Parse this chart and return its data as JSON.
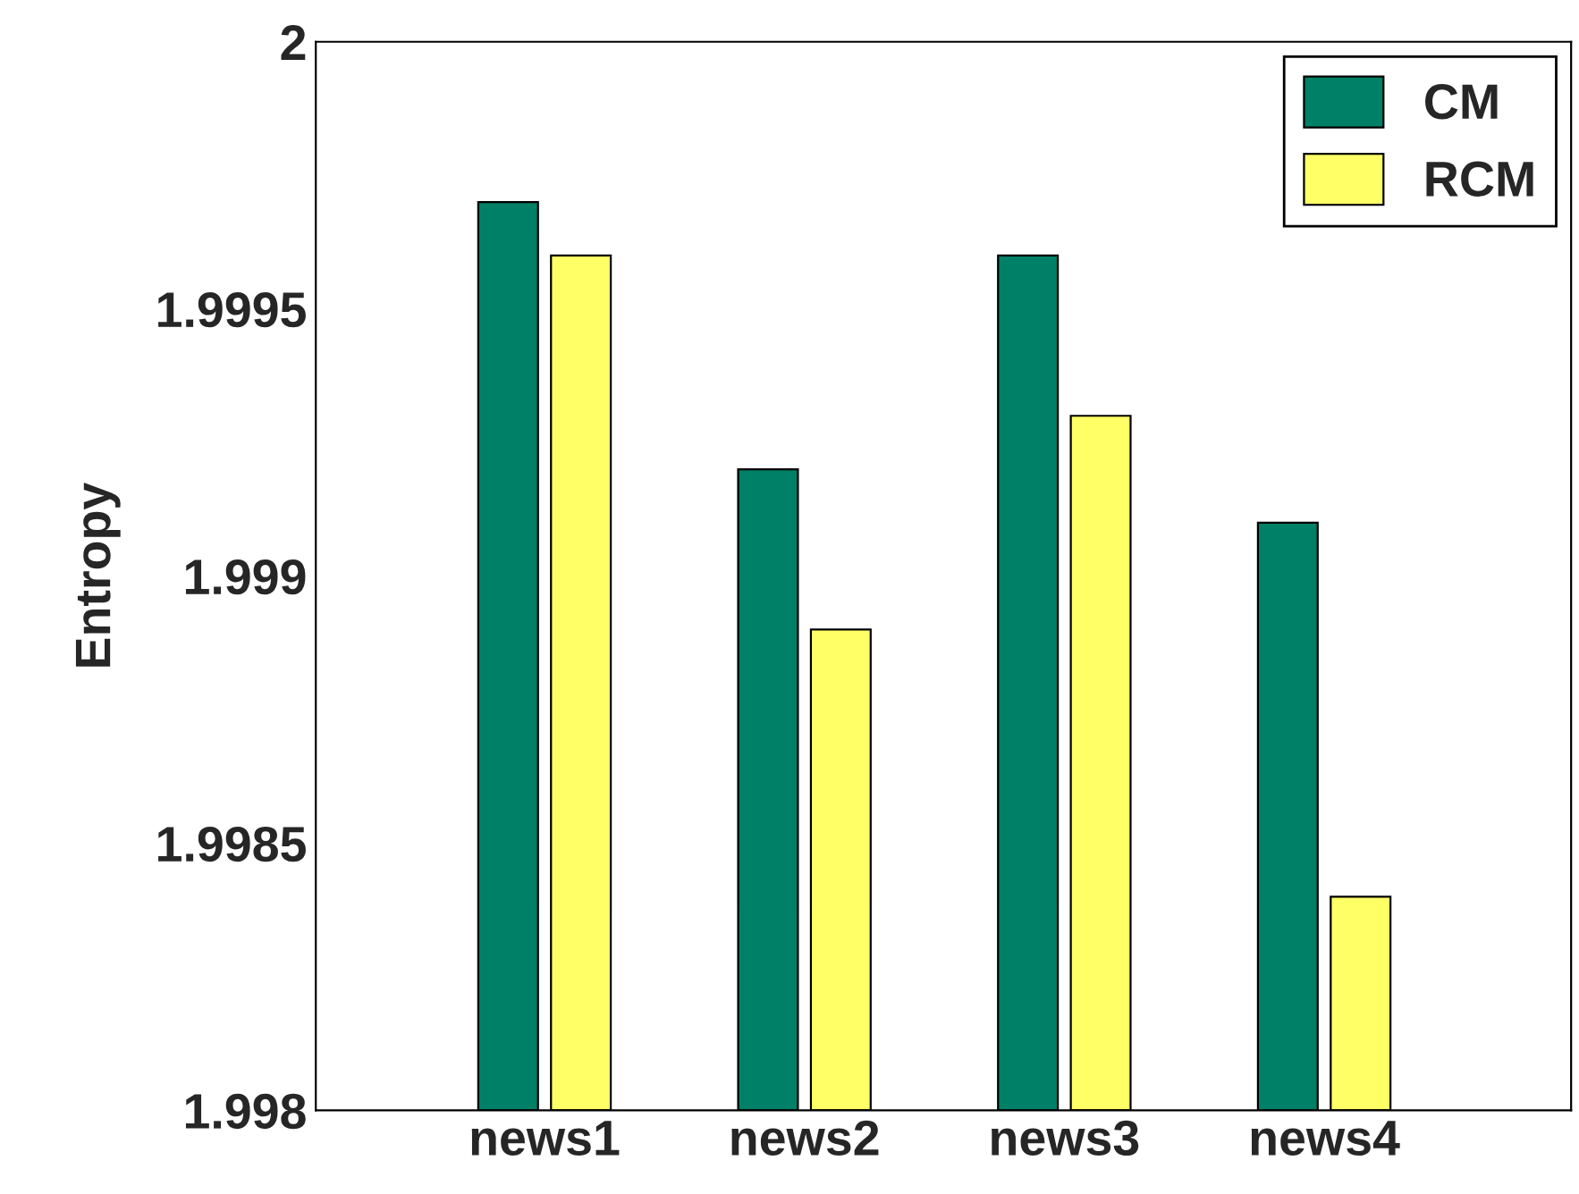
{
  "chart_data": {
    "type": "bar",
    "ylabel": "Entropy",
    "categories": [
      "news1",
      "news2",
      "news3",
      "news4"
    ],
    "series": [
      {
        "name": "CM",
        "color": "#008066",
        "values": [
          1.9997,
          1.9992,
          1.9996,
          1.9991
        ]
      },
      {
        "name": "RCM",
        "color": "#ffff66",
        "values": [
          1.9996,
          1.9989,
          1.9993,
          1.9984
        ]
      }
    ],
    "ylim": [
      1.998,
      2
    ],
    "yticks": [
      1.998,
      1.9985,
      1.999,
      1.9995,
      2
    ],
    "grid": false,
    "legend": "top right"
  }
}
